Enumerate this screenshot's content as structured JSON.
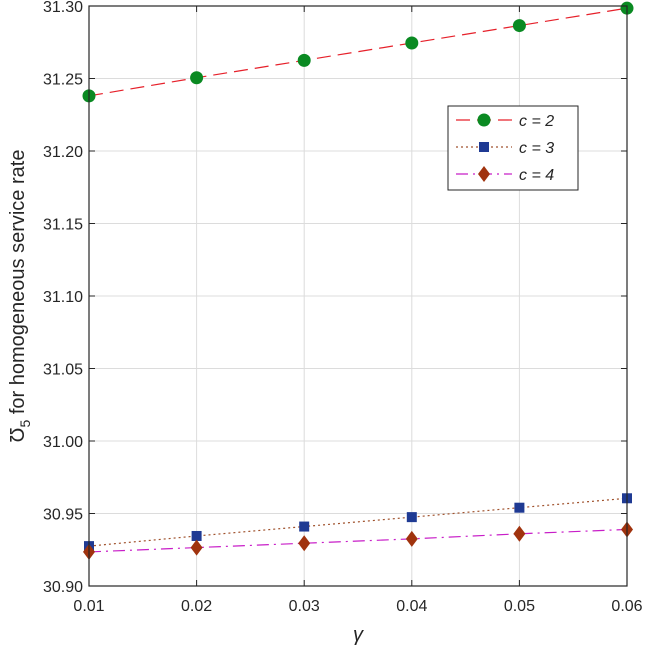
{
  "chart_data": {
    "type": "line",
    "xlabel": "γ",
    "ylabel_symbol": "Ʊ",
    "ylabel_sub": "5",
    "ylabel_rest": " for homogeneous service rate",
    "x": [
      0.01,
      0.02,
      0.03,
      0.04,
      0.05,
      0.06
    ],
    "x_ticks": [
      "0.01",
      "0.02",
      "0.03",
      "0.04",
      "0.05",
      "0.06"
    ],
    "y_ticks": [
      "30.90",
      "30.95",
      "31.00",
      "31.05",
      "31.10",
      "31.15",
      "31.20",
      "31.25",
      "31.30"
    ],
    "xlim": [
      0.01,
      0.06
    ],
    "ylim": [
      30.9,
      31.3
    ],
    "grid": true,
    "legend_position": "upper-right",
    "series": [
      {
        "name": "c = 2",
        "color": "#e6202a",
        "marker_color": "#0a8a22",
        "marker": "circle",
        "line_style": "dashed",
        "values": [
          31.238,
          31.2505,
          31.2625,
          31.2745,
          31.2865,
          31.2985
        ]
      },
      {
        "name": "c = 3",
        "color": "#a0522d",
        "marker_color": "#1f3a93",
        "marker": "square",
        "line_style": "dotted",
        "values": [
          30.9275,
          30.9345,
          30.941,
          30.9475,
          30.954,
          30.9605
        ]
      },
      {
        "name": "c = 4",
        "color": "#c81ec8",
        "marker_color": "#a0330e",
        "marker": "diamond",
        "line_style": "dashdot",
        "values": [
          30.9235,
          30.9265,
          30.9295,
          30.9325,
          30.936,
          30.939
        ]
      }
    ]
  }
}
